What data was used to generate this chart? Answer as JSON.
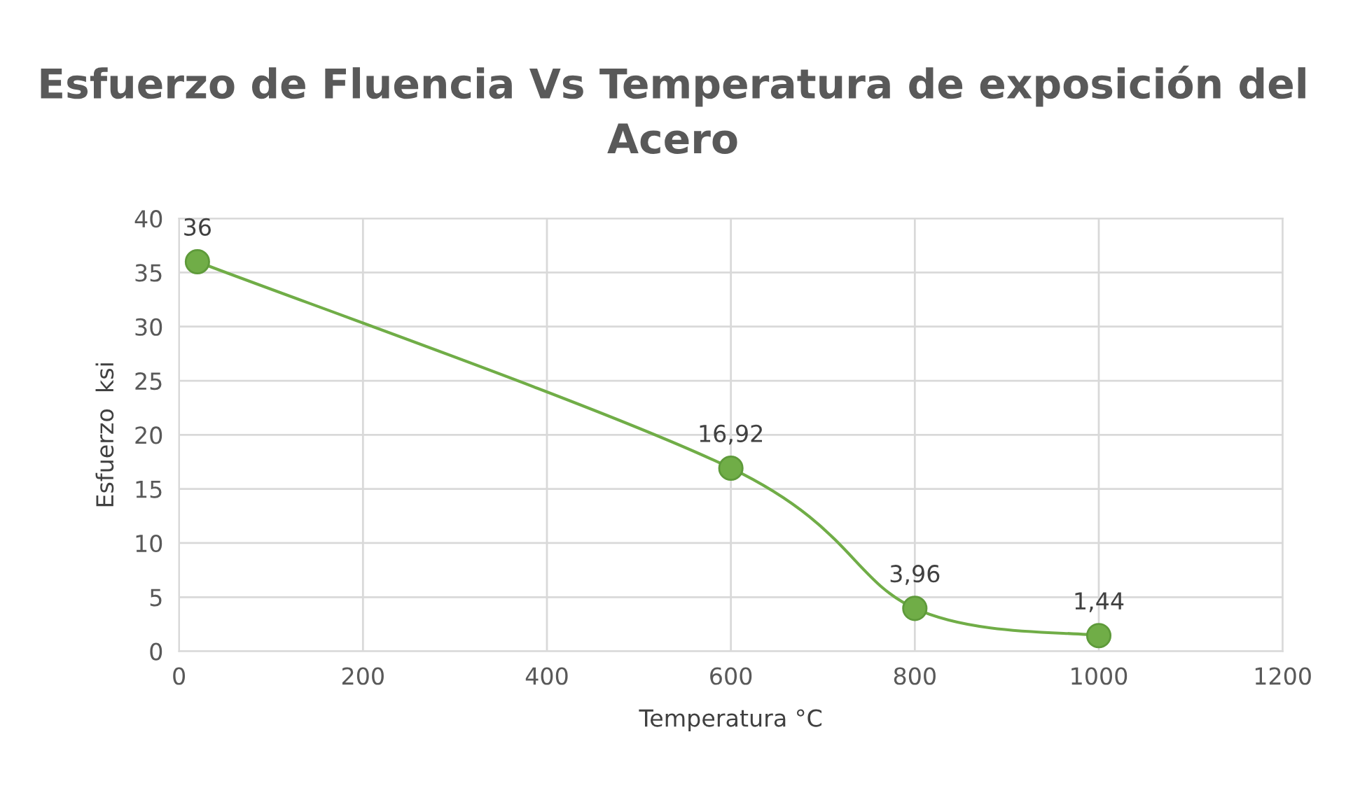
{
  "chart_data": {
    "type": "line",
    "title": "Esfuerzo de Fluencia Vs Temperatura de exposición del Acero",
    "xlabel": "Temperatura °C",
    "ylabel": "Esfuerzo  ksi",
    "x": [
      20,
      600,
      800,
      1000
    ],
    "series": [
      {
        "color": "#70ad47",
        "values": [
          36,
          16.92,
          3.96,
          1.44
        ],
        "value_labels": [
          "36",
          "16,92",
          "3,96",
          "1,44"
        ]
      }
    ],
    "xlim": [
      0,
      1200
    ],
    "xticks": [
      0,
      200,
      400,
      600,
      800,
      1000,
      1200
    ],
    "ylim": [
      0,
      40
    ],
    "yticks": [
      0,
      5,
      10,
      15,
      20,
      25,
      30,
      35,
      40
    ],
    "grid": true,
    "marker": "circle",
    "line_style": "solid",
    "legend": false
  }
}
